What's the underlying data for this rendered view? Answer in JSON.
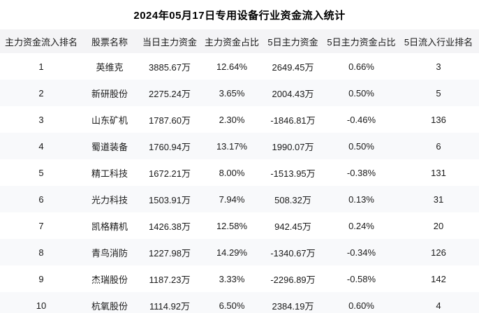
{
  "title": "2024年05月17日专用设备行业资金流入统计",
  "colors": {
    "header_bg": "#f4f4f6",
    "stripe_bg": "#f8f9fb",
    "text": "#1a1a1a",
    "title_text": "#000000"
  },
  "table": {
    "columns": [
      "主力资金流入排名",
      "股票名称",
      "当日主力资金",
      "主力资金占比",
      "5日主力资金",
      "5日主力资金占比",
      "5日流入行业排名"
    ],
    "rows": [
      [
        "1",
        "英维克",
        "3885.67万",
        "12.64%",
        "2649.45万",
        "0.66%",
        "3"
      ],
      [
        "2",
        "新研股份",
        "2275.24万",
        "3.65%",
        "2004.43万",
        "0.50%",
        "5"
      ],
      [
        "3",
        "山东矿机",
        "1787.60万",
        "2.30%",
        "-1846.81万",
        "-0.46%",
        "136"
      ],
      [
        "4",
        "蜀道装备",
        "1760.94万",
        "13.17%",
        "1990.07万",
        "0.50%",
        "6"
      ],
      [
        "5",
        "精工科技",
        "1672.21万",
        "8.00%",
        "-1513.95万",
        "-0.38%",
        "131"
      ],
      [
        "6",
        "光力科技",
        "1503.91万",
        "7.94%",
        "508.32万",
        "0.13%",
        "31"
      ],
      [
        "7",
        "凯格精机",
        "1426.38万",
        "12.58%",
        "942.45万",
        "0.24%",
        "20"
      ],
      [
        "8",
        "青鸟消防",
        "1227.98万",
        "14.29%",
        "-1340.67万",
        "-0.34%",
        "126"
      ],
      [
        "9",
        "杰瑞股份",
        "1187.23万",
        "3.33%",
        "-2296.89万",
        "-0.58%",
        "142"
      ],
      [
        "10",
        "杭氧股份",
        "1114.92万",
        "6.50%",
        "2384.19万",
        "0.60%",
        "4"
      ]
    ]
  }
}
